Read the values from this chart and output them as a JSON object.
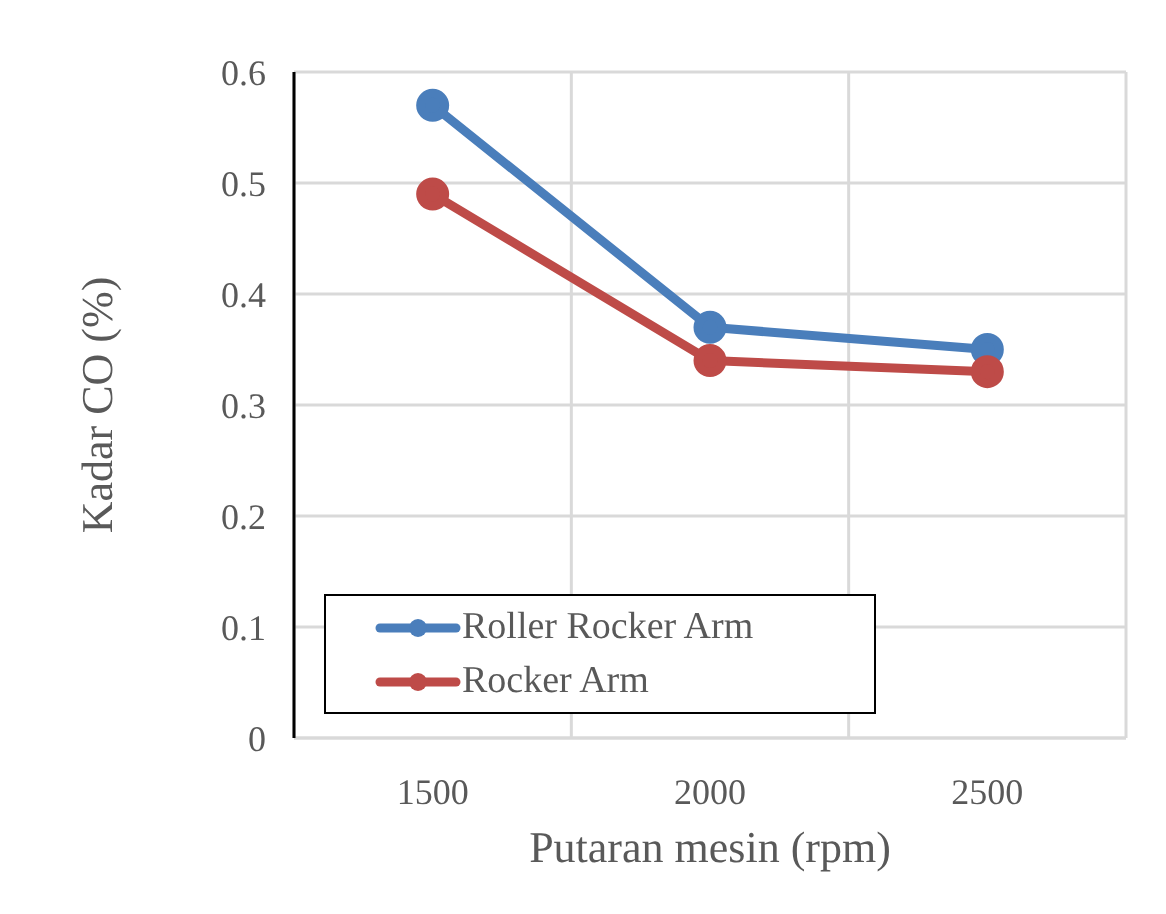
{
  "chart_data": {
    "type": "line",
    "xlabel": "Putaran mesin (rpm)",
    "ylabel": "Kadar CO (%)",
    "categories": [
      "1500",
      "2000",
      "2500"
    ],
    "series": [
      {
        "name": "Roller Rocker Arm",
        "color": "#4a7ebb",
        "values": [
          0.57,
          0.37,
          0.35
        ]
      },
      {
        "name": "Rocker Arm",
        "color": "#be4b48",
        "values": [
          0.49,
          0.34,
          0.33
        ]
      }
    ],
    "ylim": [
      0,
      0.6
    ],
    "yticks": [
      0,
      0.1,
      0.2,
      0.3,
      0.4,
      0.5,
      0.6
    ],
    "grid": true,
    "legend": "bottom left",
    "marker": "circle",
    "line_style": "solid"
  }
}
